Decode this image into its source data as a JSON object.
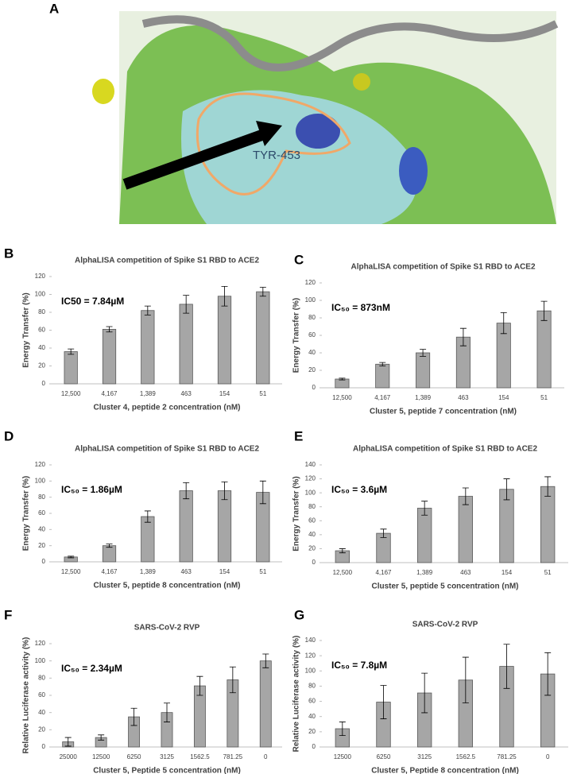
{
  "panel_a": {
    "label": "A",
    "annotation": "TYR-453"
  },
  "chart_data": [
    {
      "type": "bar",
      "panel_label": "B",
      "title": "AlphaLISA competition of Spike S1 RBD to ACE2",
      "annotation": "IC50 = 7.84µM",
      "x_label": "Cluster 4, peptide 2 concentration (nM)",
      "y_label": "Energy Transfer (%)",
      "categories": [
        "12,500",
        "4,167",
        "1,389",
        "463",
        "154",
        "51"
      ],
      "values": [
        36,
        61,
        82,
        89,
        98,
        103
      ],
      "errors": [
        3,
        3,
        5,
        10,
        11,
        5
      ],
      "color": "#a6a6a6",
      "ylim": [
        0,
        120
      ],
      "yticks": [
        0,
        20,
        40,
        60,
        80,
        100,
        120
      ]
    },
    {
      "type": "bar",
      "panel_label": "C",
      "title": "AlphaLISA competition of Spike S1 RBD to ACE2",
      "annotation": "IC₅₀ = 873nM",
      "x_label": "Cluster 5, peptide 7 concentration (nM)",
      "y_label": "Energy Transfer (%)",
      "categories": [
        "12,500",
        "4,167",
        "1,389",
        "463",
        "154",
        "51"
      ],
      "values": [
        10,
        27,
        40,
        58,
        74,
        88
      ],
      "errors": [
        1,
        2,
        4,
        10,
        12,
        11
      ],
      "color": "#a6a6a6",
      "ylim": [
        0,
        120
      ],
      "yticks": [
        0,
        20,
        40,
        60,
        80,
        100,
        120
      ]
    },
    {
      "type": "bar",
      "panel_label": "D",
      "title": "AlphaLISA competition of Spike S1 RBD to ACE2",
      "annotation": "IC₅₀ = 1.86µM",
      "x_label": "Cluster 5, peptide 8 concentration (nM)",
      "y_label": "Energy Transfer (%)",
      "categories": [
        "12,500",
        "4,167",
        "1,389",
        "463",
        "154",
        "51"
      ],
      "values": [
        6,
        20,
        56,
        88,
        88,
        86
      ],
      "errors": [
        1,
        2,
        7,
        10,
        11,
        14
      ],
      "color": "#a6a6a6",
      "ylim": [
        0,
        120
      ],
      "yticks": [
        0,
        20,
        40,
        60,
        80,
        100,
        120
      ]
    },
    {
      "type": "bar",
      "panel_label": "E",
      "title": "AlphaLISA competition of Spike S1 RBD to ACE2",
      "annotation": "IC₅₀ = 3.6µM",
      "x_label": "Cluster 5, peptide 5 concentration (nM)",
      "y_label": "Energy Transfer (%)",
      "categories": [
        "12,500",
        "4,167",
        "1,389",
        "463",
        "154",
        "51"
      ],
      "values": [
        17,
        42,
        78,
        95,
        105,
        109
      ],
      "errors": [
        3,
        6,
        10,
        12,
        15,
        14
      ],
      "color": "#a6a6a6",
      "ylim": [
        0,
        140
      ],
      "yticks": [
        0,
        20,
        40,
        60,
        80,
        100,
        120,
        140
      ]
    },
    {
      "type": "bar",
      "panel_label": "F",
      "title": "SARS-CoV-2 RVP",
      "annotation": "IC₅₀ = 2.34µM",
      "x_label": "Cluster 5, Peptide 5 concentration (nM)",
      "y_label": "Relative Luciferase activity (%)",
      "categories": [
        "25000",
        "12500",
        "6250",
        "3125",
        "1562.5",
        "781.25",
        "0"
      ],
      "values": [
        6,
        11,
        35,
        40,
        71,
        78,
        100
      ],
      "errors": [
        5,
        3,
        10,
        11,
        11,
        15,
        8
      ],
      "color": "#a6a6a6",
      "ylim": [
        0,
        120
      ],
      "yticks": [
        0,
        20,
        40,
        60,
        80,
        100,
        120
      ]
    },
    {
      "type": "bar",
      "panel_label": "G",
      "title": "SARS-CoV-2 RVP",
      "annotation": "IC₅₀ = 7.8µM",
      "x_label": "Cluster 5, Peptide 8 concentration (nM)",
      "y_label": "Relative Luciferase activity (%)",
      "categories": [
        "12500",
        "6250",
        "3125",
        "1562.5",
        "781.25",
        "0"
      ],
      "values": [
        24,
        59,
        71,
        88,
        106,
        96
      ],
      "errors": [
        9,
        22,
        26,
        30,
        29,
        28
      ],
      "color": "#a6a6a6",
      "ylim": [
        0,
        140
      ],
      "yticks": [
        0,
        20,
        40,
        60,
        80,
        100,
        120,
        140
      ]
    }
  ]
}
